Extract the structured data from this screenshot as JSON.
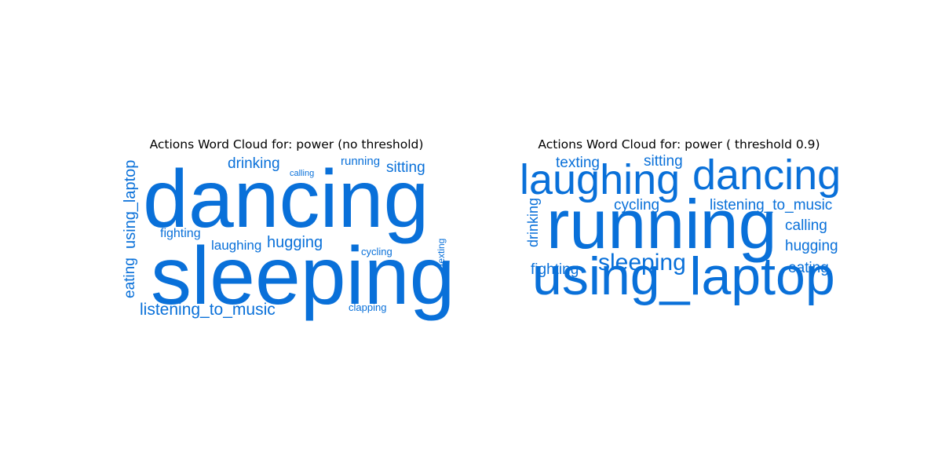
{
  "colors": {
    "word": "#0970d9",
    "title": "#000000",
    "background": "#ffffff"
  },
  "chart_data": [
    {
      "type": "wordcloud",
      "title": "Actions Word Cloud for: power (no threshold)",
      "words": [
        {
          "text": "dancing",
          "rank": 1
        },
        {
          "text": "sleeping",
          "rank": 2
        },
        {
          "text": "listening_to_music",
          "rank": 3
        },
        {
          "text": "using_laptop",
          "rank": 4
        },
        {
          "text": "drinking",
          "rank": 5
        },
        {
          "text": "hugging",
          "rank": 6
        },
        {
          "text": "sitting",
          "rank": 7
        },
        {
          "text": "eating",
          "rank": 8
        },
        {
          "text": "laughing",
          "rank": 9
        },
        {
          "text": "fighting",
          "rank": 10
        },
        {
          "text": "running",
          "rank": 11
        },
        {
          "text": "cycling",
          "rank": 12
        },
        {
          "text": "clapping",
          "rank": 13
        },
        {
          "text": "texting",
          "rank": 14
        },
        {
          "text": "calling",
          "rank": 15
        }
      ]
    },
    {
      "type": "wordcloud",
      "title": "Actions Word Cloud for: power ( threshold 0.9)",
      "words": [
        {
          "text": "running",
          "rank": 1
        },
        {
          "text": "using_laptop",
          "rank": 2
        },
        {
          "text": "laughing",
          "rank": 3
        },
        {
          "text": "dancing",
          "rank": 4
        },
        {
          "text": "sleeping",
          "rank": 5
        },
        {
          "text": "listening_to_music",
          "rank": 6
        },
        {
          "text": "cycling",
          "rank": 7
        },
        {
          "text": "texting",
          "rank": 8
        },
        {
          "text": "sitting",
          "rank": 9
        },
        {
          "text": "calling",
          "rank": 10
        },
        {
          "text": "hugging",
          "rank": 11
        },
        {
          "text": "fighting",
          "rank": 12
        },
        {
          "text": "eating",
          "rank": 13
        },
        {
          "text": "drinking",
          "rank": 14
        }
      ]
    }
  ]
}
